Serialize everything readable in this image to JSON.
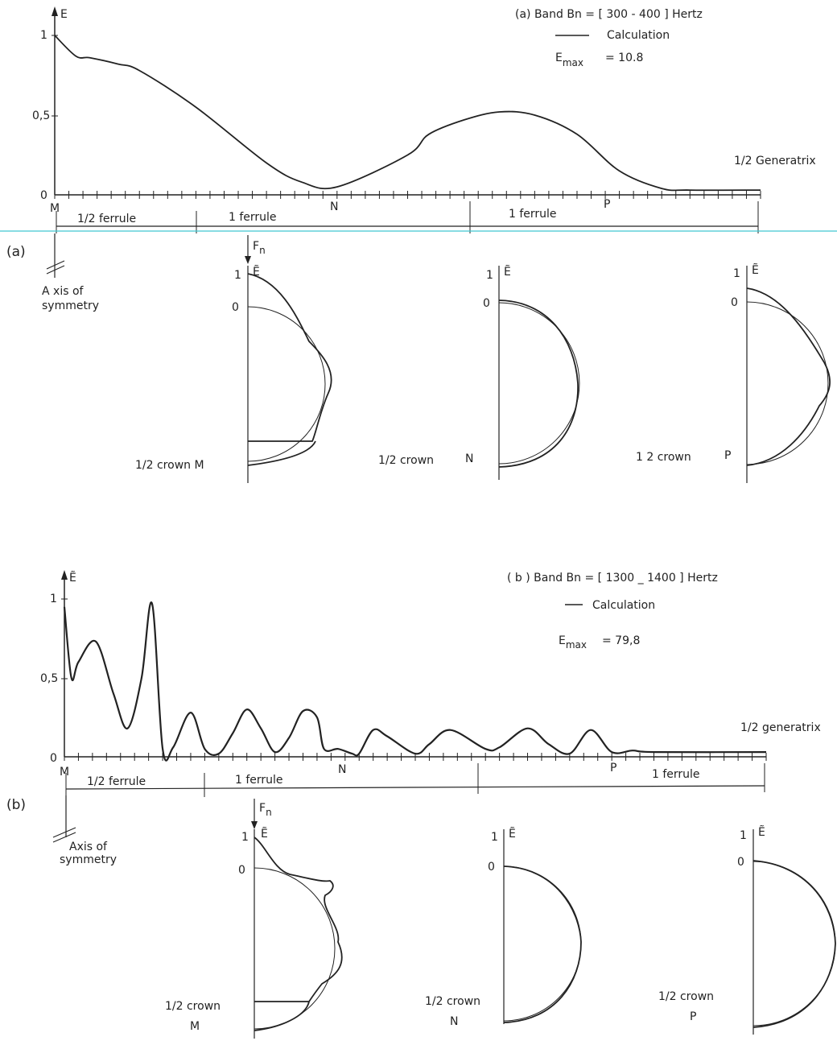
{
  "panel_a": {
    "label": "(a)",
    "band_text": "(a)  Band  Bn = [ 300 - 400 ] Hertz",
    "legend": "Calculation",
    "emax_label": "E",
    "emax_sub": "max",
    "emax_value": "= 10.8",
    "y_axis_label": "E",
    "x_axis_label": "1/2 Generatrix",
    "points_labels": [
      "M",
      "N",
      "P"
    ],
    "ferrule_labels": [
      "1/2 ferrule",
      "1 ferrule",
      "1 ferrule"
    ],
    "axis_symmetry": [
      "A xis   of",
      "symmetry"
    ],
    "force_label": "F",
    "force_sub": "n",
    "crown_labels": [
      "1/2 crown M",
      "1/2  crown",
      "1  2  crown"
    ],
    "crown_letters": [
      "",
      "N",
      "P"
    ],
    "polar_tick_top": "1",
    "polar_tick_zero": "0",
    "polar_axis_label": "Ẽ"
  },
  "panel_b": {
    "label": "(b)",
    "band_text": "( b )  Band   Bn  = [ 1300 _ 1400 ]  Hertz",
    "legend": "Calculation",
    "emax_label": "E",
    "emax_sub": "max",
    "emax_value": "= 79,8",
    "y_axis_label": "Ẽ",
    "x_axis_label": "1/2 generatrix",
    "points_labels": [
      "M",
      "N",
      "P"
    ],
    "ferrule_labels": [
      "1/2 ferrule",
      "1 ferrule",
      "1 ferrule"
    ],
    "axis_symmetry": [
      "Axis of",
      "symmetry"
    ],
    "force_label": "F",
    "force_sub": "n",
    "crown_labels": [
      "1/2 crown",
      "1/2 crown",
      "1/2 crown"
    ],
    "crown_letters": [
      "M",
      "N",
      "P"
    ],
    "polar_tick_top": "1",
    "polar_tick_zero": "0",
    "polar_axis_label": "Ẽ"
  },
  "chart_data": [
    {
      "type": "line",
      "panel": "a",
      "title": "(a)  Band  Bn = [ 300 - 400 ] Hertz",
      "xlabel": "1/2 Generatrix",
      "ylabel": "E",
      "yticks": [
        "0",
        "0,5",
        "1"
      ],
      "ylim": [
        0,
        1
      ],
      "xlim": [
        0,
        1
      ],
      "x": [
        0.0,
        0.03,
        0.05,
        0.09,
        0.12,
        0.2,
        0.3,
        0.35,
        0.4,
        0.5,
        0.53,
        0.58,
        0.63,
        0.68,
        0.74,
        0.8,
        0.86,
        0.9,
        1.0
      ],
      "values": [
        1.0,
        0.87,
        0.86,
        0.82,
        0.78,
        0.55,
        0.2,
        0.08,
        0.05,
        0.25,
        0.38,
        0.47,
        0.52,
        0.5,
        0.38,
        0.15,
        0.04,
        0.03,
        0.03
      ],
      "markers": [
        "M",
        "N",
        "P"
      ],
      "emax": "10.8"
    },
    {
      "type": "line",
      "panel": "b",
      "title": "( b )  Band   Bn  = [ 1300 _ 1400 ]  Hertz",
      "xlabel": "1/2 generatrix",
      "ylabel": "Ẽ",
      "yticks": [
        "0",
        "0,5",
        "1"
      ],
      "ylim": [
        0,
        1
      ],
      "xlim": [
        0,
        1
      ],
      "x": [
        0.0,
        0.01,
        0.02,
        0.045,
        0.07,
        0.09,
        0.11,
        0.125,
        0.14,
        0.155,
        0.18,
        0.2,
        0.22,
        0.24,
        0.26,
        0.28,
        0.3,
        0.32,
        0.34,
        0.36,
        0.37,
        0.39,
        0.41,
        0.42,
        0.44,
        0.46,
        0.5,
        0.52,
        0.55,
        0.6,
        0.62,
        0.66,
        0.69,
        0.72,
        0.75,
        0.78,
        0.81,
        0.84,
        1.0
      ],
      "values": [
        0.95,
        0.5,
        0.6,
        0.73,
        0.4,
        0.18,
        0.5,
        0.97,
        0.05,
        0.06,
        0.28,
        0.05,
        0.02,
        0.15,
        0.3,
        0.18,
        0.03,
        0.12,
        0.29,
        0.25,
        0.05,
        0.05,
        0.02,
        0.02,
        0.17,
        0.13,
        0.02,
        0.08,
        0.17,
        0.05,
        0.06,
        0.18,
        0.08,
        0.02,
        0.17,
        0.03,
        0.04,
        0.03,
        0.03
      ],
      "markers": [
        "M",
        "N",
        "P"
      ],
      "emax": "79,8"
    }
  ]
}
